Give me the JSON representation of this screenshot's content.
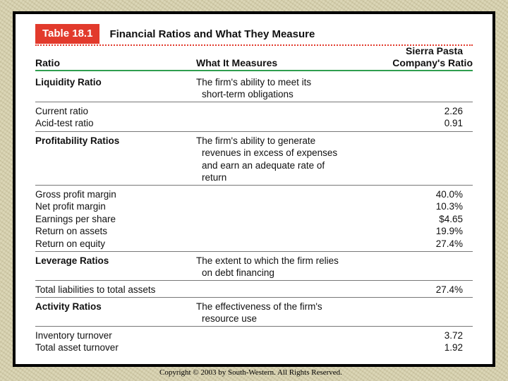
{
  "table": {
    "number": "Table 18.1",
    "title": "Financial Ratios and What They Measure",
    "headers": {
      "ratio": "Ratio",
      "measures": "What It Measures",
      "company_line1": "Sierra Pasta",
      "company_line2": "Company's Ratio"
    },
    "liquidity": {
      "heading": "Liquidity Ratio",
      "desc_line1": "The firm's ability to meet its",
      "desc_line2": "short-term obligations",
      "items": [
        {
          "name": "Current ratio",
          "value": "2.26"
        },
        {
          "name": "Acid-test ratio",
          "value": "0.91"
        }
      ]
    },
    "profitability": {
      "heading": "Profitability Ratios",
      "desc_line1": "The firm's ability to generate",
      "desc_line2": "revenues in excess of expenses",
      "desc_line3": "and earn an adequate rate of",
      "desc_line4": "return",
      "items": [
        {
          "name": "Gross profit margin",
          "value": "40.0%"
        },
        {
          "name": "Net profit margin",
          "value": "10.3%"
        },
        {
          "name": "Earnings per share",
          "value": "$4.65"
        },
        {
          "name": "Return on assets",
          "value": "19.9%"
        },
        {
          "name": "Return on equity",
          "value": "27.4%"
        }
      ]
    },
    "leverage": {
      "heading": "Leverage Ratios",
      "desc_line1": "The extent to which the firm relies",
      "desc_line2": "on debt financing",
      "items": [
        {
          "name": "Total liabilities to total assets",
          "value": "27.4%"
        }
      ]
    },
    "activity": {
      "heading": "Activity Ratios",
      "desc_line1": "The effectiveness of the firm's",
      "desc_line2": "resource use",
      "items": [
        {
          "name": "Inventory turnover",
          "value": "3.72"
        },
        {
          "name": "Total asset turnover",
          "value": "1.92"
        }
      ]
    }
  },
  "footer": "Copyright © 2003 by South-Western. All Rights Reserved."
}
